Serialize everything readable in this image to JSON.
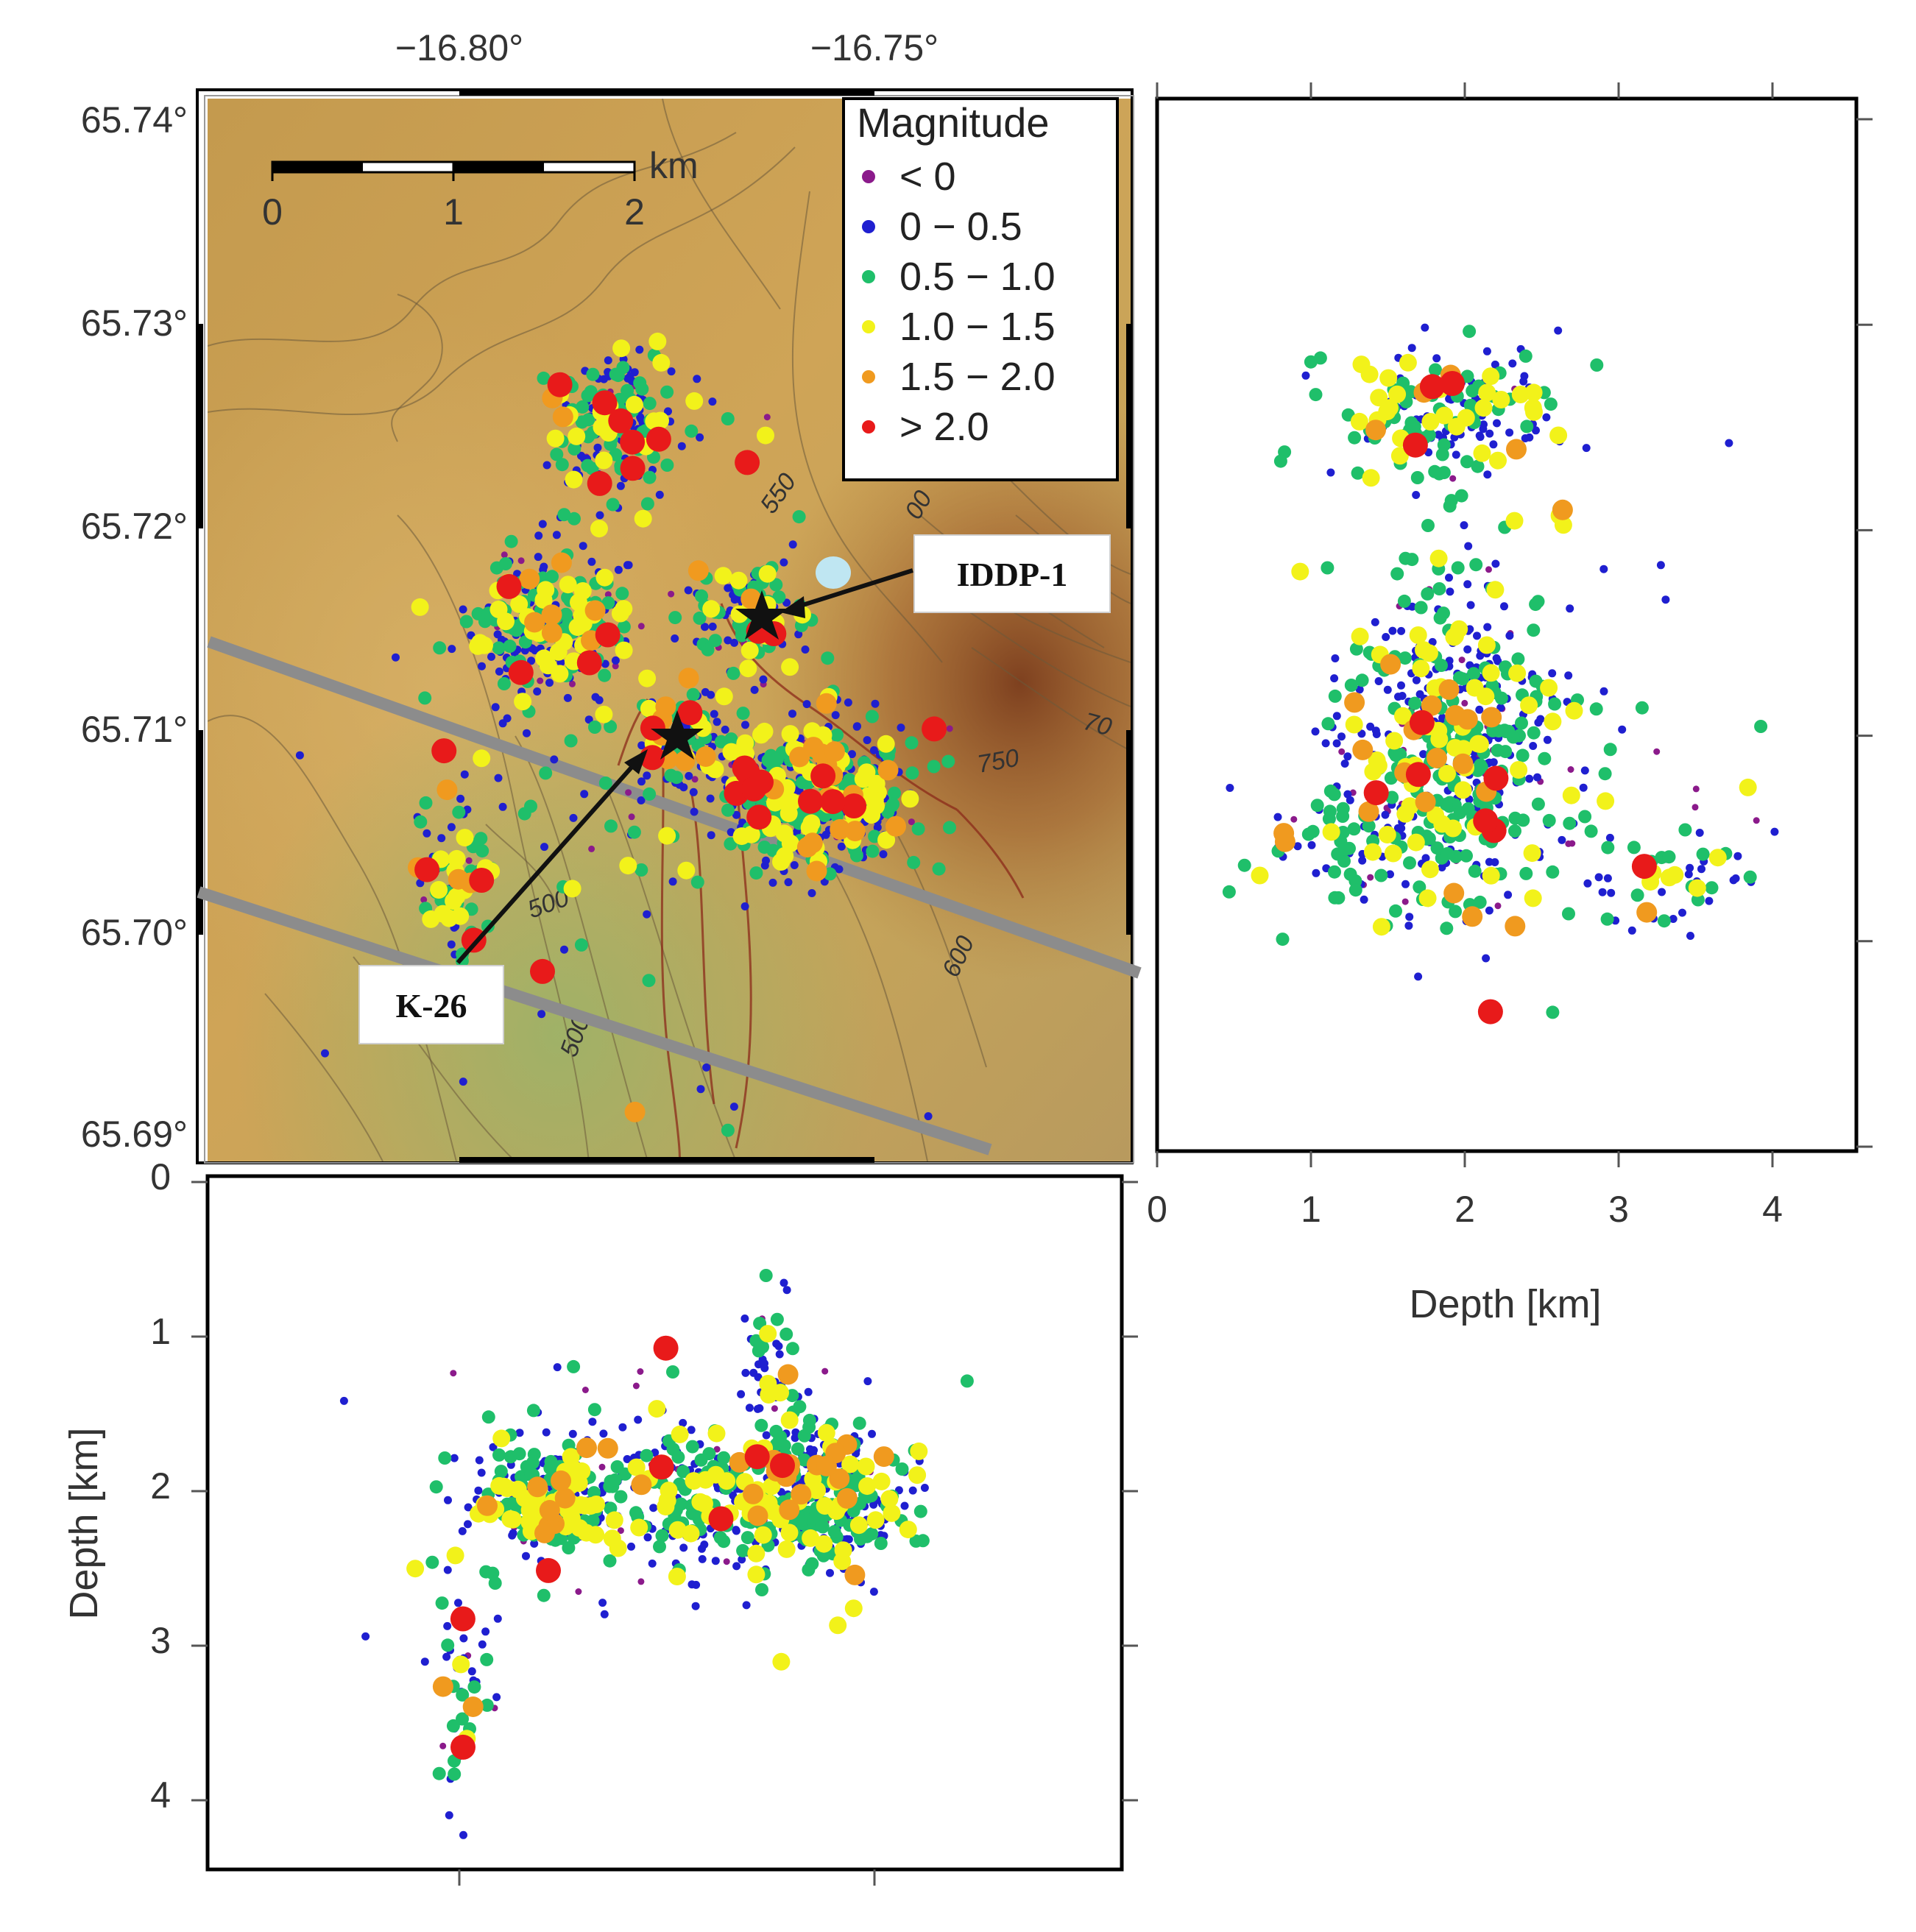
{
  "map_panel": {
    "lon_ticks": [
      "−16.80°",
      "−16.75°"
    ],
    "lat_ticks": [
      "65.74°",
      "65.73°",
      "65.72°",
      "65.71°",
      "65.70°",
      "65.69°"
    ],
    "scale_bar": {
      "unit": "km",
      "labels": [
        "0",
        "1",
        "2"
      ]
    },
    "contour_labels": [
      "550",
      "500",
      "500",
      "600",
      "750",
      "70",
      "00"
    ],
    "callouts": [
      {
        "label": "IDDP-1"
      },
      {
        "label": "K-26"
      }
    ],
    "legend": {
      "title": "Magnitude",
      "items": [
        {
          "label": "< 0",
          "color": "#8b1a8b"
        },
        {
          "label": "0 − 0.5",
          "color": "#1f1fd0"
        },
        {
          "label": "0.5 − 1.0",
          "color": "#1fbf6a"
        },
        {
          "label": "1.0 − 1.5",
          "color": "#f2f21a"
        },
        {
          "label": "1.5 − 2.0",
          "color": "#f09a1f"
        },
        {
          "label": "> 2.0",
          "color": "#e81a1a"
        }
      ]
    }
  },
  "ns_depth_panel": {
    "xlabel": "Depth [km]",
    "x_ticks": [
      "0",
      "1",
      "2",
      "3",
      "4"
    ]
  },
  "ew_depth_panel": {
    "ylabel": "Depth [km]",
    "y_ticks": [
      "0",
      "1",
      "2",
      "3",
      "4"
    ]
  },
  "chart_data": [
    {
      "type": "scatter",
      "panel": "map",
      "title": "",
      "xlabel": "",
      "ylabel": "",
      "xlim": [
        -16.831,
        -16.719
      ],
      "ylim": [
        65.6888,
        65.7412
      ],
      "x_ticks": [
        -16.8,
        -16.75
      ],
      "y_ticks": [
        65.74,
        65.73,
        65.72,
        65.71,
        65.7,
        65.69
      ],
      "wells": [
        {
          "name": "IDDP-1",
          "x": -16.763,
          "y": 65.7156
        },
        {
          "name": "K-26",
          "x": -16.774,
          "y": 65.7094
        }
      ],
      "clusters_approx": [
        {
          "x": -16.789,
          "y": 65.7155,
          "events": "dense"
        },
        {
          "x": -16.781,
          "y": 65.7255,
          "events": "dense"
        },
        {
          "x": -16.758,
          "y": 65.707,
          "events": "very dense"
        },
        {
          "x": -16.765,
          "y": 65.716,
          "events": "moderate"
        },
        {
          "x": -16.8,
          "y": 65.703,
          "events": "sparse"
        }
      ],
      "magnitude_classes": [
        "< 0",
        "0 − 0.5",
        "0.5 − 1.0",
        "1.0 − 1.5",
        "1.5 − 2.0",
        "> 2.0"
      ],
      "grid": false,
      "legend_position": "top-right"
    },
    {
      "type": "scatter",
      "panel": "depth-vs-latitude",
      "xlabel": "Depth [km]",
      "xlim": [
        0,
        4.5
      ],
      "x_ticks": [
        0,
        1,
        2,
        3,
        4
      ],
      "depth_concentration_km": [
        1.7,
        2.3
      ],
      "grid": false
    },
    {
      "type": "scatter",
      "panel": "depth-vs-longitude",
      "ylabel": "Depth [km]",
      "ylim": [
        0,
        4.5
      ],
      "y_ticks": [
        0,
        1,
        2,
        3,
        4
      ],
      "depth_concentration_km": [
        1.8,
        2.3
      ],
      "grid": false
    }
  ]
}
